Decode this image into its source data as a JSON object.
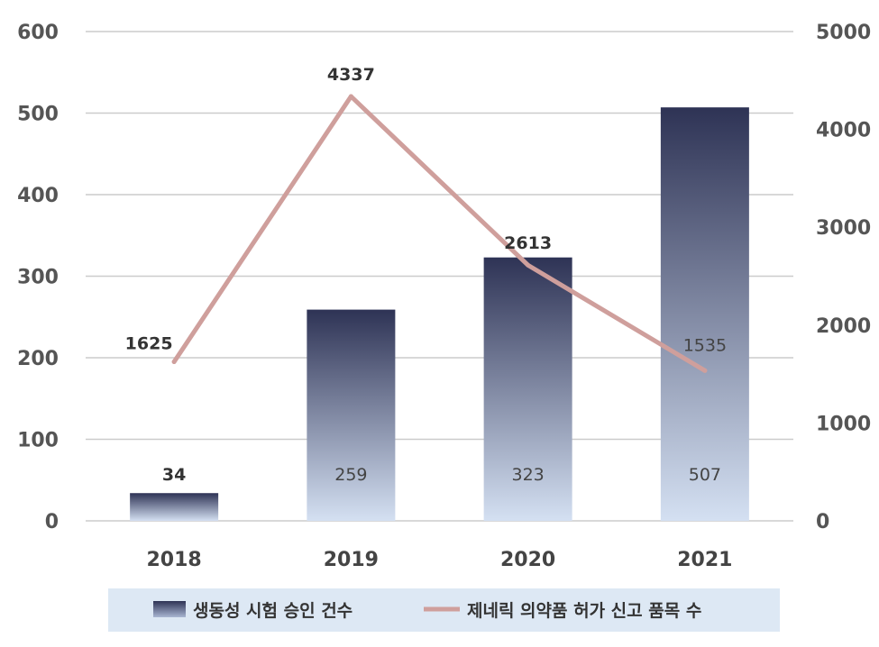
{
  "chart_data": {
    "type": "bar",
    "categories": [
      "2018",
      "2019",
      "2020",
      "2021"
    ],
    "series": [
      {
        "name": "생동성 시험 승인 건수",
        "type": "bar",
        "axis": "left",
        "values": [
          34,
          259,
          323,
          507
        ]
      },
      {
        "name": "제네릭 의약품 허가 신고 품목 수",
        "type": "line",
        "axis": "right",
        "values": [
          1625,
          4337,
          2613,
          1535
        ]
      }
    ],
    "y_left": {
      "ylim": [
        0,
        600
      ],
      "ticks": [
        0,
        100,
        200,
        300,
        400,
        500,
        600
      ]
    },
    "y_right": {
      "ylim": [
        0,
        5000
      ],
      "ticks": [
        0,
        1000,
        2000,
        3000,
        4000,
        5000
      ]
    },
    "grid": true,
    "legend": "bottom",
    "colors": {
      "bar_top": "#2e3355",
      "bar_bottom": "#d4e0f2",
      "line": "#cf9f9c",
      "grid": "#cccccc",
      "legend_bg": "#dde8f4"
    }
  }
}
